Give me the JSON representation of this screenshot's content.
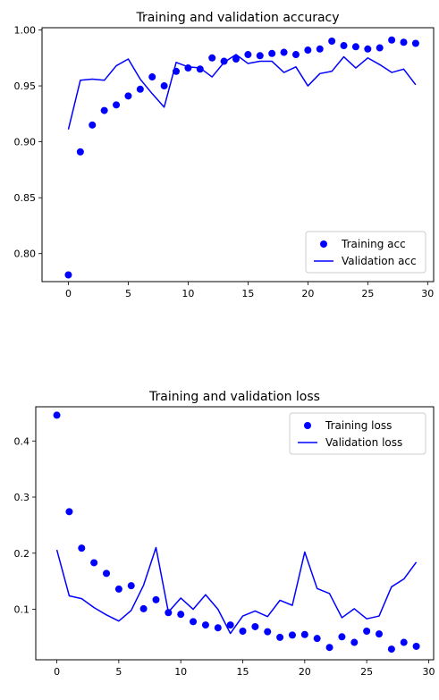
{
  "chart_data": [
    {
      "type": "line",
      "title": "Training and validation accuracy",
      "xlabel": "",
      "ylabel": "",
      "xlim": [
        -2.2,
        30.5
      ],
      "ylim": [
        0.775,
        1.002
      ],
      "xticks": [
        0,
        5,
        10,
        15,
        20,
        25,
        30
      ],
      "yticks": [
        0.8,
        0.85,
        0.9,
        0.95,
        1.0
      ],
      "ytick_labels": [
        "0.80",
        "0.85",
        "0.90",
        "0.95",
        "1.00"
      ],
      "legend_position": "lower-right",
      "colors": {
        "series": "#0000ff"
      },
      "series": [
        {
          "name": "Training acc",
          "style": "points",
          "x": [
            0,
            1,
            2,
            3,
            4,
            5,
            6,
            7,
            8,
            9,
            10,
            11,
            12,
            13,
            14,
            15,
            16,
            17,
            18,
            19,
            20,
            21,
            22,
            23,
            24,
            25,
            26,
            27,
            28,
            29
          ],
          "values": [
            0.781,
            0.891,
            0.915,
            0.928,
            0.933,
            0.941,
            0.947,
            0.958,
            0.95,
            0.963,
            0.966,
            0.965,
            0.975,
            0.972,
            0.974,
            0.978,
            0.977,
            0.979,
            0.98,
            0.978,
            0.982,
            0.983,
            0.99,
            0.986,
            0.985,
            0.983,
            0.984,
            0.991,
            0.989,
            0.988
          ]
        },
        {
          "name": "Validation acc",
          "style": "line",
          "x": [
            0,
            1,
            2,
            3,
            4,
            5,
            6,
            7,
            8,
            9,
            10,
            11,
            12,
            13,
            14,
            15,
            16,
            17,
            18,
            19,
            20,
            21,
            22,
            23,
            24,
            25,
            26,
            27,
            28,
            29
          ],
          "values": [
            0.911,
            0.955,
            0.956,
            0.955,
            0.968,
            0.974,
            0.956,
            0.943,
            0.931,
            0.971,
            0.967,
            0.966,
            0.958,
            0.971,
            0.978,
            0.97,
            0.972,
            0.972,
            0.962,
            0.967,
            0.95,
            0.961,
            0.963,
            0.976,
            0.966,
            0.975,
            0.969,
            0.962,
            0.965,
            0.951
          ]
        }
      ]
    },
    {
      "type": "line",
      "title": "Training and validation loss",
      "xlabel": "",
      "ylabel": "",
      "xlim": [
        -1.7,
        30.4
      ],
      "ylim": [
        0.01,
        0.461
      ],
      "xticks": [
        0,
        5,
        10,
        15,
        20,
        25,
        30
      ],
      "yticks": [
        0.1,
        0.2,
        0.3,
        0.4
      ],
      "ytick_labels": [
        "0.1",
        "0.2",
        "0.3",
        "0.4"
      ],
      "legend_position": "top-right",
      "colors": {
        "series": "#0000ff"
      },
      "series": [
        {
          "name": "Training loss",
          "style": "points",
          "x": [
            0,
            1,
            2,
            3,
            4,
            5,
            6,
            7,
            8,
            9,
            10,
            11,
            12,
            13,
            14,
            15,
            16,
            17,
            18,
            19,
            20,
            21,
            22,
            23,
            24,
            25,
            26,
            27,
            28,
            29
          ],
          "values": [
            0.446,
            0.274,
            0.209,
            0.183,
            0.164,
            0.136,
            0.142,
            0.101,
            0.117,
            0.094,
            0.091,
            0.078,
            0.072,
            0.067,
            0.072,
            0.061,
            0.069,
            0.06,
            0.05,
            0.054,
            0.055,
            0.048,
            0.032,
            0.051,
            0.041,
            0.061,
            0.056,
            0.029,
            0.041,
            0.034
          ]
        },
        {
          "name": "Validation loss",
          "style": "line",
          "x": [
            0,
            1,
            2,
            3,
            4,
            5,
            6,
            7,
            8,
            9,
            10,
            11,
            12,
            13,
            14,
            15,
            16,
            17,
            18,
            19,
            20,
            21,
            22,
            23,
            24,
            25,
            26,
            27,
            28,
            29
          ],
          "values": [
            0.206,
            0.124,
            0.119,
            0.103,
            0.09,
            0.079,
            0.098,
            0.143,
            0.21,
            0.095,
            0.12,
            0.1,
            0.126,
            0.1,
            0.057,
            0.088,
            0.097,
            0.087,
            0.116,
            0.107,
            0.202,
            0.137,
            0.128,
            0.085,
            0.101,
            0.083,
            0.088,
            0.14,
            0.154,
            0.184
          ]
        }
      ]
    }
  ]
}
